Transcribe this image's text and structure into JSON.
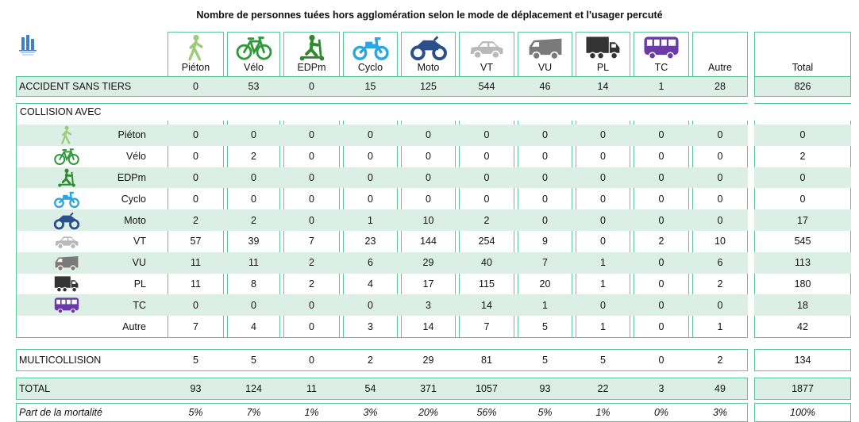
{
  "title": "Nombre de personnes tuées hors agglomération selon le mode de déplacement et l'usager percuté",
  "colors": {
    "accent": "#5cc49a",
    "shade": "#dcefe6",
    "pieton": "#9ccc7a",
    "velo": "#2f9a3a",
    "edpm": "#2e8b2e",
    "cyclo": "#2aa7e0",
    "moto": "#2a4f8a",
    "vt": "#b8b8b8",
    "vu": "#7a7a7a",
    "pl": "#333333",
    "tc": "#6a3aa8"
  },
  "columns": [
    "Piéton",
    "Vélo",
    "EDPm",
    "Cyclo",
    "Moto",
    "VT",
    "VU",
    "PL",
    "TC",
    "Autre",
    "Total"
  ],
  "column_icons": [
    "pedestrian-icon",
    "bicycle-icon",
    "scooter-icon",
    "moped-icon",
    "motorcycle-icon",
    "car-icon",
    "van-icon",
    "truck-icon",
    "bus-icon",
    "",
    ""
  ],
  "accident": {
    "label": "ACCIDENT SANS TIERS",
    "values": [
      "0",
      "53",
      "0",
      "15",
      "125",
      "544",
      "46",
      "14",
      "1",
      "28",
      "826"
    ]
  },
  "collision_header": "COLLISION AVEC",
  "collision_rows": [
    {
      "label": "Piéton",
      "icon": "pedestrian-icon",
      "values": [
        "0",
        "0",
        "0",
        "0",
        "0",
        "0",
        "0",
        "0",
        "0",
        "0",
        "0"
      ]
    },
    {
      "label": "Vélo",
      "icon": "bicycle-icon",
      "values": [
        "0",
        "2",
        "0",
        "0",
        "0",
        "0",
        "0",
        "0",
        "0",
        "0",
        "2"
      ]
    },
    {
      "label": "EDPm",
      "icon": "scooter-icon",
      "values": [
        "0",
        "0",
        "0",
        "0",
        "0",
        "0",
        "0",
        "0",
        "0",
        "0",
        "0"
      ]
    },
    {
      "label": "Cyclo",
      "icon": "moped-icon",
      "values": [
        "0",
        "0",
        "0",
        "0",
        "0",
        "0",
        "0",
        "0",
        "0",
        "0",
        "0"
      ]
    },
    {
      "label": "Moto",
      "icon": "motorcycle-icon",
      "values": [
        "2",
        "2",
        "0",
        "1",
        "10",
        "2",
        "0",
        "0",
        "0",
        "0",
        "17"
      ]
    },
    {
      "label": "VT",
      "icon": "car-icon",
      "values": [
        "57",
        "39",
        "7",
        "23",
        "144",
        "254",
        "9",
        "0",
        "2",
        "10",
        "545"
      ]
    },
    {
      "label": "VU",
      "icon": "van-icon",
      "values": [
        "11",
        "11",
        "2",
        "6",
        "29",
        "40",
        "7",
        "1",
        "0",
        "6",
        "113"
      ]
    },
    {
      "label": "PL",
      "icon": "truck-icon",
      "values": [
        "11",
        "8",
        "2",
        "4",
        "17",
        "115",
        "20",
        "1",
        "0",
        "2",
        "180"
      ]
    },
    {
      "label": "TC",
      "icon": "bus-icon",
      "values": [
        "0",
        "0",
        "0",
        "0",
        "3",
        "14",
        "1",
        "0",
        "0",
        "0",
        "18"
      ]
    },
    {
      "label": "Autre",
      "icon": "",
      "values": [
        "7",
        "4",
        "0",
        "3",
        "14",
        "7",
        "5",
        "1",
        "0",
        "1",
        "42"
      ]
    }
  ],
  "multicollision": {
    "label": "MULTICOLLISION",
    "values": [
      "5",
      "5",
      "0",
      "2",
      "29",
      "81",
      "5",
      "5",
      "0",
      "2",
      "134"
    ]
  },
  "total": {
    "label": "TOTAL",
    "values": [
      "93",
      "124",
      "11",
      "54",
      "371",
      "1057",
      "93",
      "22",
      "3",
      "49",
      "1877"
    ]
  },
  "share": {
    "label": "Part de la mortalité",
    "values": [
      "5%",
      "7%",
      "1%",
      "3%",
      "20%",
      "56%",
      "5%",
      "1%",
      "0%",
      "3%",
      "100%"
    ]
  }
}
